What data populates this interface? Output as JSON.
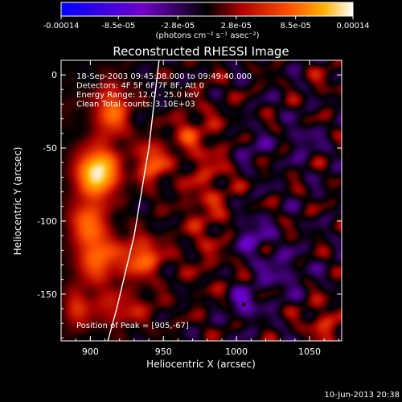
{
  "chart_data": {
    "type": "heatmap",
    "title": "Reconstructed RHESSI Image",
    "xlabel": "Heliocentric X (arcsec)",
    "ylabel": "Heliocentric Y (arcsec)",
    "xlim": [
      880,
      1072
    ],
    "ylim": [
      -182,
      10
    ],
    "x_ticks": [
      900,
      950,
      1000,
      1050
    ],
    "y_ticks": [
      0,
      -50,
      -100,
      -150
    ],
    "colorbar": {
      "ticks": [
        "-0.00014",
        "-8.5e-05",
        "-2.8e-05",
        "2.8e-05",
        "8.5e-05",
        "0.00014"
      ],
      "unit_label": "(photons cm⁻² s⁻¹ asec⁻²)",
      "range": [
        -0.00014,
        0.00014
      ]
    },
    "annotations": [
      "18-Sep-2003 09:45:08.000 to 09:49:40.000",
      "Detectors: 4F 5F 6F 7F 8F, Att 0",
      "Energy Range: 12.0 - 25.0 keV",
      "Clean     Total counts: 3.10E+03"
    ],
    "peak_text": "Position of Peak = [905,-67]",
    "peak": [
      905,
      -67
    ],
    "marker": [
      1005,
      -157
    ],
    "limb": [
      [
        947,
        10
      ],
      [
        940,
        -50
      ],
      [
        930,
        -110
      ],
      [
        918,
        -160
      ],
      [
        912,
        -182
      ]
    ],
    "grid": false,
    "blobs": [
      [
        905,
        -67,
        1.0,
        14,
        16
      ],
      [
        915,
        -25,
        0.55,
        12,
        18
      ],
      [
        898,
        -100,
        0.5,
        12,
        14
      ],
      [
        942,
        -60,
        0.55,
        10,
        14
      ],
      [
        905,
        -125,
        0.55,
        14,
        18
      ],
      [
        935,
        -125,
        0.55,
        14,
        14
      ],
      [
        920,
        -160,
        0.3,
        24,
        12
      ],
      [
        980,
        -80,
        0.25,
        18,
        60
      ],
      [
        965,
        -40,
        0.28,
        10,
        12
      ],
      [
        1010,
        -110,
        -0.35,
        12,
        12
      ],
      [
        1005,
        -157,
        -0.4,
        10,
        10
      ],
      [
        1045,
        -45,
        -0.25,
        10,
        10
      ],
      [
        1010,
        -50,
        -0.2,
        12,
        10
      ],
      [
        1030,
        -135,
        -0.25,
        16,
        14
      ],
      [
        1060,
        -170,
        0.3,
        14,
        14
      ],
      [
        1060,
        -5,
        0.15,
        10,
        10
      ],
      [
        885,
        -20,
        0.08,
        8,
        10
      ],
      [
        890,
        -160,
        0.3,
        8,
        14
      ]
    ],
    "wave": {
      "base": -0.02,
      "amp": 0.18,
      "kx": 0.18,
      "ky": 0.21,
      "weights": [
        1,
        1,
        1
      ],
      "blend_x": 940,
      "blend_w": 25,
      "floor": -0.55,
      "cap": 1.0
    }
  },
  "timestamp": "10-Jun-2013 20:38"
}
